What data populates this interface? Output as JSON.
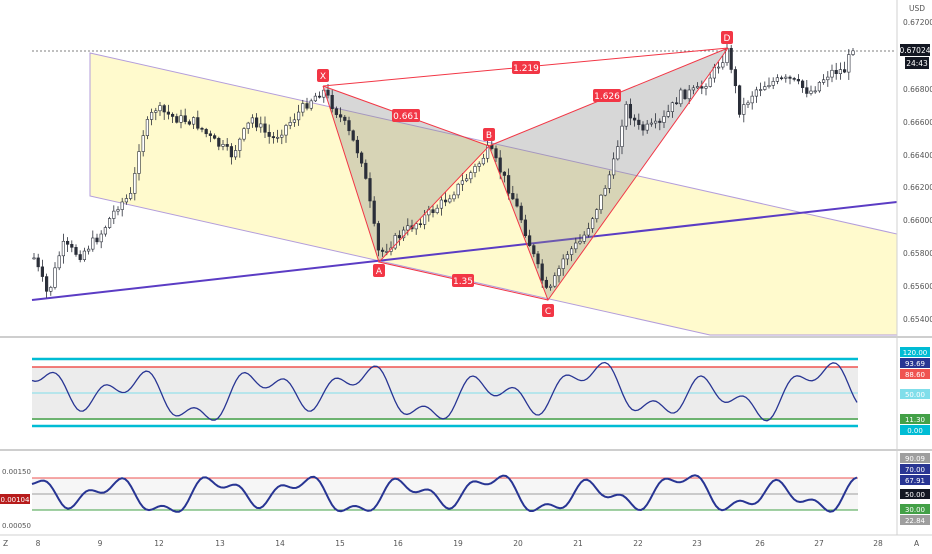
{
  "price_axis": {
    "currency": "USD",
    "ticks": [
      "0.67200",
      "0.66800",
      "0.66600",
      "0.66400",
      "0.66200",
      "0.66000",
      "0.65800",
      "0.65600",
      "0.65400"
    ],
    "last_price": "0.67024",
    "countdown": "24:43"
  },
  "time_axis": {
    "labels": [
      "8",
      "9",
      "12",
      "13",
      "14",
      "15",
      "16",
      "19",
      "20",
      "21",
      "22",
      "23",
      "26",
      "27",
      "28"
    ],
    "left_corner": "Z",
    "right_corner": "A"
  },
  "pattern": {
    "points": [
      "X",
      "A",
      "B",
      "C",
      "D"
    ],
    "ratios": {
      "xd": "1.219",
      "xb": "0.661",
      "ac": "1.35",
      "bd": "1.626"
    }
  },
  "osc1": {
    "labels": [
      "120.00",
      "93.69",
      "88.60",
      "50.00",
      "11.30",
      "0.00"
    ]
  },
  "osc2": {
    "left_value": "0.00104",
    "left_ticks": [
      "0.00150",
      "0.00050"
    ],
    "labels": [
      "90.09",
      "70.00",
      "67.91",
      "50.00",
      "30.00",
      "22.84"
    ]
  },
  "colors": {
    "bull": "#26a69a",
    "bear": "#ef5350",
    "pattern_line": "#f23645",
    "trend": "#5b3cc4",
    "channel": "#fff9c4",
    "band": "#00bcd4",
    "osc_line": "#283593",
    "label_red": "#f23645"
  },
  "chart_data": {
    "type": "candlestick",
    "ylim": [
      0.6537,
      0.6731
    ],
    "close_last": 0.67024,
    "pattern_prices": {
      "X": 0.6683,
      "A": 0.6577,
      "B": 0.6644,
      "C": 0.6551,
      "D": 0.6705
    },
    "candles_approx_count": 150
  }
}
